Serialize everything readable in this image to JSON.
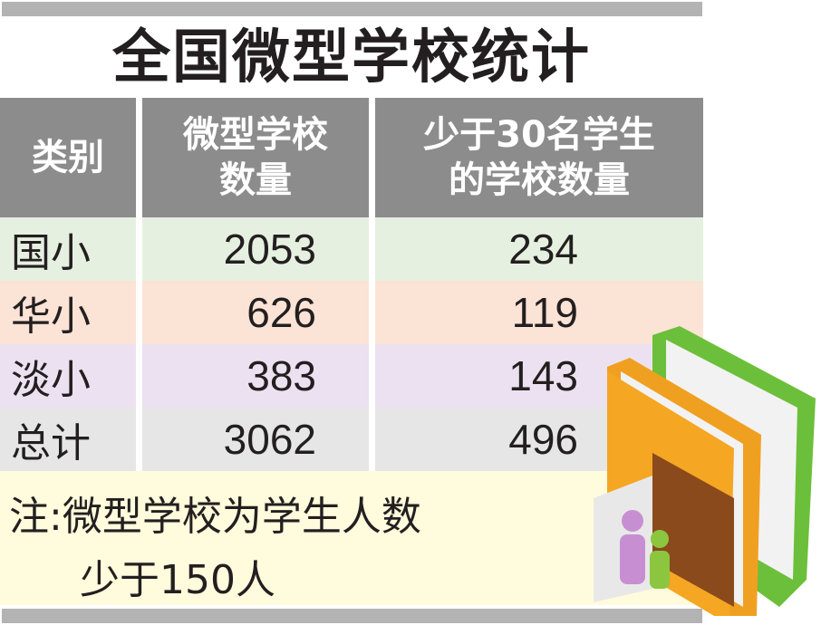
{
  "chart_data": {
    "type": "table",
    "title": "全国微型学校统计",
    "columns": [
      "类别",
      "微型学校数量",
      "少于30名学生的学校数量"
    ],
    "column_lines": [
      [
        "类别"
      ],
      [
        "微型学校",
        "数量"
      ],
      [
        "少于30名学生",
        "的学校数量"
      ]
    ],
    "rows": [
      {
        "category": "国小",
        "micro_schools": "2053",
        "under_30": "234",
        "color": "#e6f0e0"
      },
      {
        "category": "华小",
        "micro_schools": "626",
        "under_30": "119",
        "color": "#fbe3d6"
      },
      {
        "category": "淡小",
        "micro_schools": "383",
        "under_30": "143",
        "color": "#ece1f0"
      },
      {
        "category": "总计",
        "micro_schools": "3062",
        "under_30": "496",
        "color": "#e6e6e6"
      }
    ],
    "note": [
      "注:微型学校为学生人数",
      "少于150人"
    ]
  },
  "colors": {
    "header": "#8c8c8c",
    "note_bg": "#fffbdc",
    "rule": "#b3b3b3"
  },
  "illustration": "books-and-people-icon"
}
